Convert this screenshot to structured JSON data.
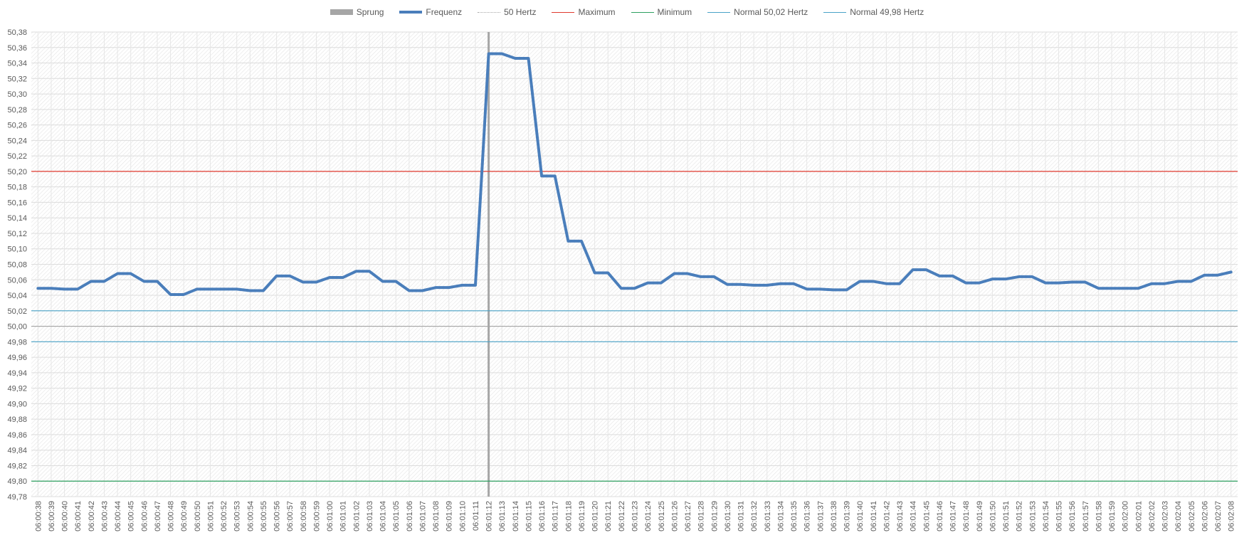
{
  "chart_data": {
    "type": "line",
    "title": "",
    "xlabel": "",
    "ylabel": "",
    "ylim": [
      49.78,
      50.38
    ],
    "ytick_step": 0.02,
    "grid": true,
    "legend_position": "top-center",
    "categories": [
      "06:00:38",
      "06:00:39",
      "06:00:40",
      "06:00:41",
      "06:00:42",
      "06:00:43",
      "06:00:44",
      "06:00:45",
      "06:00:46",
      "06:00:47",
      "06:00:48",
      "06:00:49",
      "06:00:50",
      "06:00:51",
      "06:00:52",
      "06:00:53",
      "06:00:54",
      "06:00:55",
      "06:00:56",
      "06:00:57",
      "06:00:58",
      "06:00:59",
      "06:01:00",
      "06:01:01",
      "06:01:02",
      "06:01:03",
      "06:01:04",
      "06:01:05",
      "06:01:06",
      "06:01:07",
      "06:01:08",
      "06:01:09",
      "06:01:10",
      "06:01:11",
      "06:01:12",
      "06:01:13",
      "06:01:14",
      "06:01:15",
      "06:01:16",
      "06:01:17",
      "06:01:18",
      "06:01:19",
      "06:01:20",
      "06:01:21",
      "06:01:22",
      "06:01:23",
      "06:01:24",
      "06:01:25",
      "06:01:26",
      "06:01:27",
      "06:01:28",
      "06:01:29",
      "06:01:30",
      "06:01:31",
      "06:01:32",
      "06:01:33",
      "06:01:34",
      "06:01:35",
      "06:01:36",
      "06:01:37",
      "06:01:38",
      "06:01:39",
      "06:01:40",
      "06:01:41",
      "06:01:42",
      "06:01:43",
      "06:01:44",
      "06:01:45",
      "06:01:46",
      "06:01:47",
      "06:01:48",
      "06:01:49",
      "06:01:50",
      "06:01:51",
      "06:01:52",
      "06:01:53",
      "06:01:54",
      "06:01:55",
      "06:01:56",
      "06:01:57",
      "06:01:58",
      "06:01:59",
      "06:02:00",
      "06:02:01",
      "06:02:02",
      "06:02:03",
      "06:02:04",
      "06:02:05",
      "06:02:06",
      "06:02:07",
      "06:02:08"
    ],
    "series": [
      {
        "name": "Sprung",
        "kind": "vertical-marker",
        "at": "06:01:12",
        "color": "#a6a6a6"
      },
      {
        "name": "Frequenz",
        "kind": "line",
        "color": "#4a7ebb",
        "values": [
          50.049,
          50.049,
          50.048,
          50.048,
          50.058,
          50.058,
          50.068,
          50.068,
          50.058,
          50.058,
          50.041,
          50.041,
          50.048,
          50.048,
          50.048,
          50.048,
          50.046,
          50.046,
          50.065,
          50.065,
          50.057,
          50.057,
          50.063,
          50.063,
          50.071,
          50.071,
          50.058,
          50.058,
          50.046,
          50.046,
          50.05,
          50.05,
          50.053,
          50.053,
          50.352,
          50.352,
          50.346,
          50.346,
          50.194,
          50.194,
          50.11,
          50.11,
          50.069,
          50.069,
          50.049,
          50.049,
          50.056,
          50.056,
          50.068,
          50.068,
          50.064,
          50.064,
          50.054,
          50.054,
          50.053,
          50.053,
          50.055,
          50.055,
          50.048,
          50.048,
          50.047,
          50.047,
          50.058,
          50.058,
          50.055,
          50.055,
          50.073,
          50.073,
          50.065,
          50.065,
          50.056,
          50.056,
          50.061,
          50.061,
          50.064,
          50.064,
          50.056,
          50.056,
          50.057,
          50.057,
          50.049,
          50.049,
          50.049,
          50.049,
          50.055,
          50.055,
          50.058,
          50.058,
          50.066,
          50.066,
          50.07
        ]
      },
      {
        "name": "50 Hertz",
        "kind": "hline",
        "value": 50.0,
        "color": "#a6a6a6"
      },
      {
        "name": "Maximum",
        "kind": "hline",
        "value": 50.2,
        "color": "#e03a2f"
      },
      {
        "name": "Minimum",
        "kind": "hline",
        "value": 49.8,
        "color": "#2ea060"
      },
      {
        "name": "Normal 50,02 Hertz",
        "kind": "hline",
        "value": 50.02,
        "color": "#4aa3c8"
      },
      {
        "name": "Normal 49,98 Hertz",
        "kind": "hline",
        "value": 49.98,
        "color": "#4aa3c8"
      }
    ]
  }
}
